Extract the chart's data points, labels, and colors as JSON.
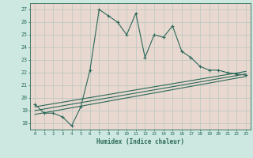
{
  "xlabel": "Humidex (Indice chaleur)",
  "bg_color": "#cce8e0",
  "grid_bg_color": "#e8d8d0",
  "grid_color": "#b8c8c0",
  "line_color": "#2a6858",
  "tick_color": "#2a6858",
  "xlabel_color": "#2a6858",
  "xlim": [
    -0.5,
    23.5
  ],
  "ylim": [
    17.5,
    27.5
  ],
  "x_ticks": [
    0,
    1,
    2,
    3,
    4,
    5,
    6,
    7,
    8,
    9,
    10,
    11,
    12,
    13,
    14,
    15,
    16,
    17,
    18,
    19,
    20,
    21,
    22,
    23
  ],
  "y_ticks": [
    18,
    19,
    20,
    21,
    22,
    23,
    24,
    25,
    26,
    27
  ],
  "series1_x": [
    0,
    1,
    2,
    3,
    4,
    5,
    6,
    7,
    8,
    9,
    10,
    11,
    12,
    13,
    14,
    15,
    16,
    17,
    18,
    19,
    20,
    21,
    22,
    23
  ],
  "series1_y": [
    19.5,
    18.8,
    18.8,
    18.5,
    17.8,
    19.3,
    22.2,
    27.0,
    26.5,
    26.0,
    25.0,
    26.7,
    23.2,
    25.0,
    24.8,
    25.7,
    23.7,
    23.2,
    22.5,
    22.2,
    22.2,
    22.0,
    21.9,
    21.8
  ],
  "series2_x": [
    0,
    23
  ],
  "series2_y": [
    19.3,
    22.1
  ],
  "series3_x": [
    0,
    23
  ],
  "series3_y": [
    19.0,
    21.9
  ],
  "series4_x": [
    0,
    23
  ],
  "series4_y": [
    18.7,
    21.7
  ]
}
